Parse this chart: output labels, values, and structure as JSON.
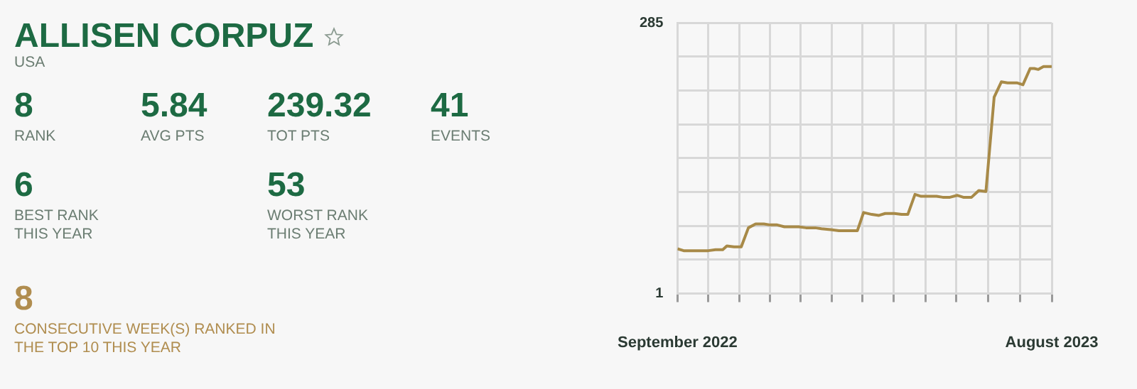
{
  "chart_data": [
    {
      "type": "other",
      "title": "ALLISEN CORPUZ",
      "subtitle": "USA",
      "annotations": [
        "8",
        "RANK",
        "5.84",
        "AVG PTS",
        "239.32",
        "TOT PTS",
        "41",
        "EVENTS",
        "6",
        "BEST RANK THIS YEAR",
        "53",
        "WORST RANK THIS YEAR",
        "8",
        "CONSECUTIVE WEEK(S) RANKED IN THE TOP 10 THIS YEAR"
      ]
    },
    {
      "type": "line",
      "x": [
        "2022-09-01",
        "2022-09-07",
        "2022-10-01",
        "2022-10-08",
        "2022-10-15",
        "2022-10-19",
        "2022-10-26",
        "2022-11-02",
        "2022-11-09",
        "2022-11-16",
        "2022-11-24",
        "2022-11-30",
        "2022-12-07",
        "2022-12-14",
        "2022-12-28",
        "2023-01-04",
        "2023-01-13",
        "2023-01-19",
        "2023-01-28",
        "2023-02-05",
        "2023-02-10",
        "2023-02-23",
        "2023-03-01",
        "2023-03-09",
        "2023-03-16",
        "2023-03-22",
        "2023-03-31",
        "2023-04-07",
        "2023-04-13",
        "2023-04-20",
        "2023-04-26",
        "2023-05-11",
        "2023-05-17",
        "2023-05-24",
        "2023-05-31",
        "2023-06-06",
        "2023-06-14",
        "2023-06-21",
        "2023-06-28",
        "2023-07-06",
        "2023-07-13",
        "2023-07-19",
        "2023-07-28",
        "2023-08-03",
        "2023-08-10",
        "2023-08-14",
        "2023-08-18",
        "2023-08-23",
        "2023-08-31"
      ],
      "series": [
        {
          "color": "#a88a48",
          "values": [
            48,
            46,
            46,
            47,
            47,
            51,
            50,
            50,
            70,
            74,
            74,
            73,
            73,
            71,
            71,
            70,
            70,
            69,
            68,
            67,
            67,
            67,
            86,
            84,
            83,
            85,
            85,
            84,
            84,
            105,
            103,
            103,
            102,
            102,
            104,
            102,
            102,
            109,
            108,
            207,
            223,
            222,
            222,
            220,
            237,
            237,
            236,
            239,
            239
          ]
        }
      ],
      "xlim": [
        "2022-09-01",
        "2023-08-31"
      ],
      "xticks": [
        {
          "value": "2022-09-01",
          "label": "September 2022"
        },
        {
          "value": "2022-10-01",
          "label": null
        },
        {
          "value": "2022-10-31",
          "label": null
        },
        {
          "value": "2022-11-30",
          "label": null
        },
        {
          "value": "2022-12-30",
          "label": null
        },
        {
          "value": "2023-01-29",
          "label": null
        },
        {
          "value": "2023-02-28",
          "label": null
        },
        {
          "value": "2023-03-30",
          "label": null
        },
        {
          "value": "2023-04-30",
          "label": null
        },
        {
          "value": "2023-05-30",
          "label": null
        },
        {
          "value": "2023-06-30",
          "label": null
        },
        {
          "value": "2023-07-31",
          "label": null
        },
        {
          "value": "2023-08-31",
          "label": "August 2023"
        }
      ],
      "ylim": [
        1,
        285
      ],
      "yticks": [
        1,
        {
          "value": 36.5,
          "label": null
        },
        {
          "value": 72,
          "label": null
        },
        {
          "value": 107.5,
          "label": null
        },
        {
          "value": 143,
          "label": null
        },
        {
          "value": 178.5,
          "label": null
        },
        {
          "value": 214,
          "label": null
        },
        {
          "value": 249.5,
          "label": null
        },
        285
      ],
      "grid": true,
      "legend": false,
      "marker": "none",
      "line_style": "solid"
    }
  ]
}
